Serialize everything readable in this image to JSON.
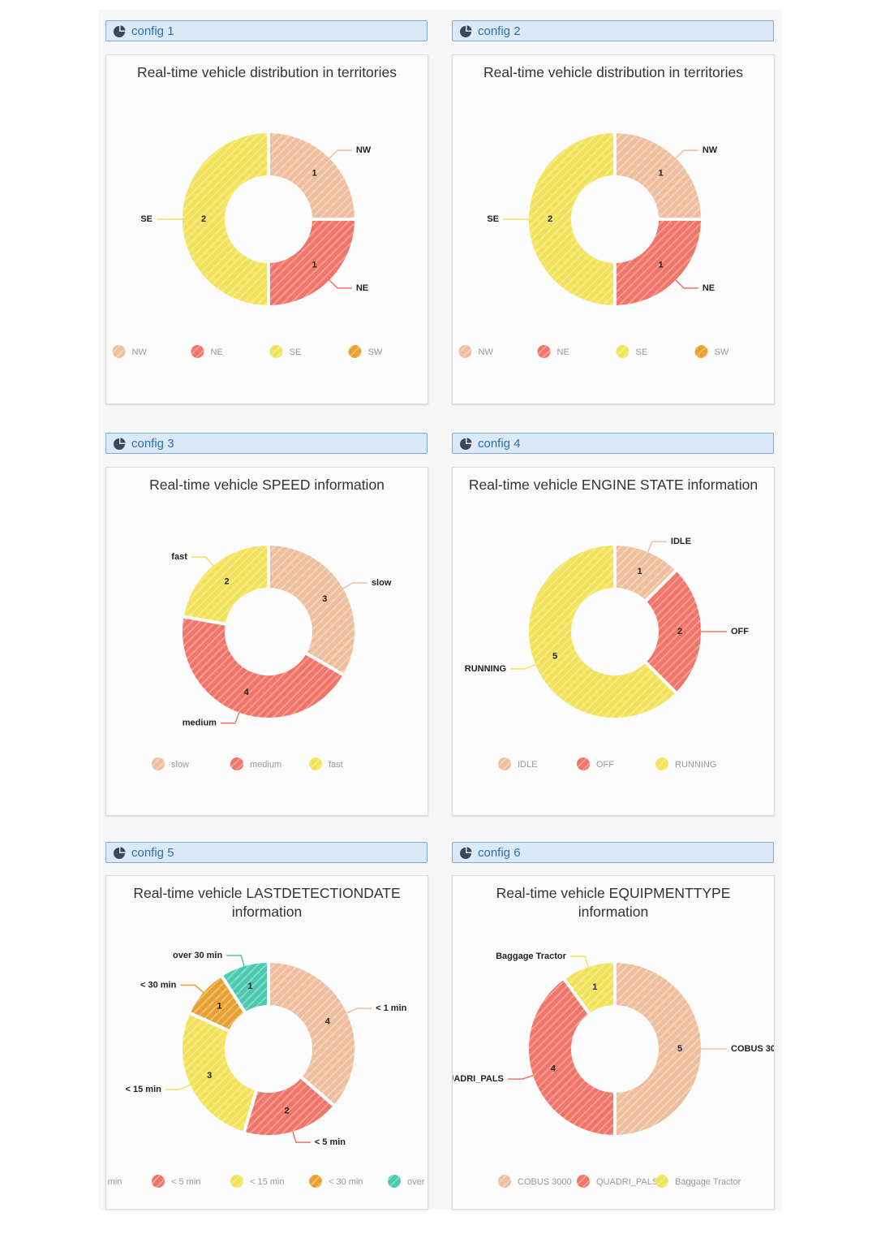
{
  "panels": [
    {
      "header": "config 1"
    },
    {
      "header": "config 2"
    },
    {
      "header": "config 3"
    },
    {
      "header": "config 4"
    },
    {
      "header": "config 5"
    },
    {
      "header": "config 6"
    }
  ],
  "chart_data": [
    {
      "type": "pie",
      "title": "Real-time vehicle distribution in territories",
      "categories": [
        "NW",
        "NE",
        "SE",
        "SW"
      ],
      "values": [
        1,
        1,
        2,
        0
      ],
      "colors": [
        "#eebf9f",
        "#f07467",
        "#f2e35a",
        "#e8a030"
      ]
    },
    {
      "type": "pie",
      "title": "Real-time vehicle distribution in territories",
      "categories": [
        "NW",
        "NE",
        "SE",
        "SW"
      ],
      "values": [
        1,
        1,
        2,
        0
      ],
      "colors": [
        "#eebf9f",
        "#f07467",
        "#f2e35a",
        "#e8a030"
      ]
    },
    {
      "type": "pie",
      "title": "Real-time vehicle SPEED information",
      "categories": [
        "slow",
        "medium",
        "fast"
      ],
      "values": [
        3,
        4,
        2
      ],
      "colors": [
        "#eebf9f",
        "#f07467",
        "#f2e35a"
      ]
    },
    {
      "type": "pie",
      "title": "Real-time vehicle ENGINE STATE information",
      "categories": [
        "IDLE",
        "OFF",
        "RUNNING"
      ],
      "values": [
        1,
        2,
        5
      ],
      "colors": [
        "#eebf9f",
        "#f07467",
        "#f2e35a"
      ]
    },
    {
      "type": "pie",
      "title": "Real-time vehicle LASTDETECTIONDATE information",
      "categories": [
        "< 1 min",
        "< 5 min",
        "< 15 min",
        "< 30 min",
        "over 30 min"
      ],
      "values": [
        4,
        2,
        3,
        1,
        1
      ],
      "colors": [
        "#eebf9f",
        "#f07467",
        "#f2e35a",
        "#e8a030",
        "#4cc9b0"
      ]
    },
    {
      "type": "pie",
      "title": "Real-time vehicle EQUIPMENTTYPE information",
      "categories": [
        "COBUS 3000",
        "QUADRI_PALS",
        "Baggage Tractor"
      ],
      "values": [
        5,
        4,
        1
      ],
      "colors": [
        "#eebf9f",
        "#f07467",
        "#f2e35a"
      ]
    }
  ]
}
